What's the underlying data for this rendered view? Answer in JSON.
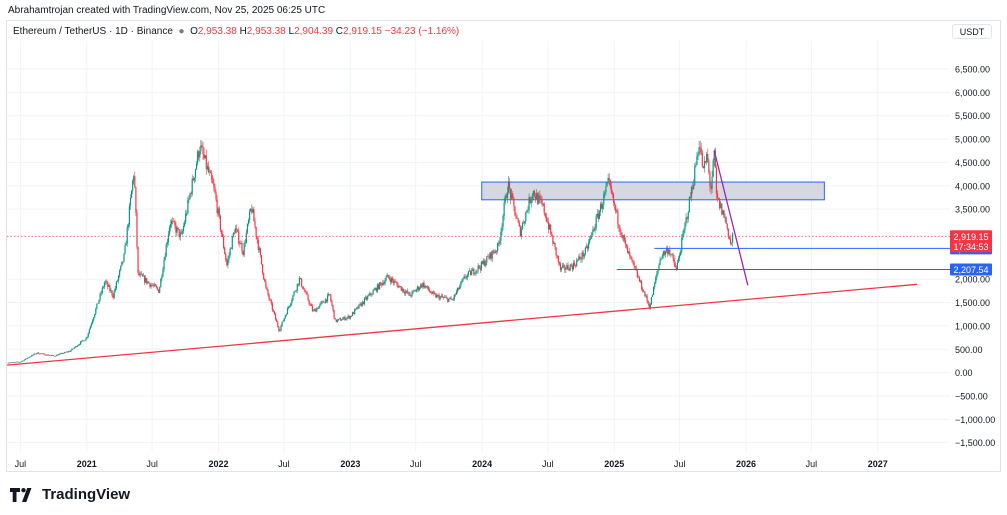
{
  "header": {
    "credit": "Abrahamtrojan created with TradingView.com, Nov 25, 2025 06:25 UTC",
    "symbol": "Ethereum / TetherUS · 1D · Binance",
    "open_label": "O",
    "open": "2,953.38",
    "high_label": "H",
    "high": "2,953.38",
    "low_label": "L",
    "low": "2,904.39",
    "close_label": "C",
    "close": "2,919.15",
    "change": "−34.23 (−1.16%)"
  },
  "axis_currency": "USDT",
  "brand": {
    "name": "TradingView",
    "icon": "tradingview-logo-icon"
  },
  "colors": {
    "up": "#089981",
    "down": "#f23645",
    "support_line": "#f23645",
    "resistance_line": "#9c27b0",
    "level_line": "#2962ff",
    "zone_fill": "#d1d4dc",
    "zone_border": "#2962ff",
    "grid": "#f0f3fa"
  },
  "chart_data": {
    "type": "candlestick",
    "x_axis": {
      "range": [
        "2020-05-25",
        "2027-07-20"
      ],
      "ticks": [
        {
          "date": "2020-07-01",
          "label": "Jul",
          "bold": false
        },
        {
          "date": "2021-01-01",
          "label": "2021",
          "bold": true
        },
        {
          "date": "2021-07-01",
          "label": "Jul",
          "bold": false
        },
        {
          "date": "2022-01-01",
          "label": "2022",
          "bold": true
        },
        {
          "date": "2022-07-01",
          "label": "Jul",
          "bold": false
        },
        {
          "date": "2023-01-01",
          "label": "2023",
          "bold": true
        },
        {
          "date": "2023-07-01",
          "label": "Jul",
          "bold": false
        },
        {
          "date": "2024-01-01",
          "label": "2024",
          "bold": true
        },
        {
          "date": "2024-07-01",
          "label": "Jul",
          "bold": false
        },
        {
          "date": "2025-01-01",
          "label": "2025",
          "bold": true
        },
        {
          "date": "2025-07-01",
          "label": "Jul",
          "bold": false
        },
        {
          "date": "2026-01-01",
          "label": "2026",
          "bold": true
        },
        {
          "date": "2026-07-01",
          "label": "Jul",
          "bold": false
        },
        {
          "date": "2027-01-01",
          "label": "2027",
          "bold": true
        }
      ]
    },
    "y_axis": {
      "range": [
        -1700,
        7100
      ],
      "ticks": [
        {
          "value": 6500,
          "label": "6,500.00"
        },
        {
          "value": 6000,
          "label": "6,000.00"
        },
        {
          "value": 5500,
          "label": "5,500.00"
        },
        {
          "value": 5000,
          "label": "5,000.00"
        },
        {
          "value": 4500,
          "label": "4,500.00"
        },
        {
          "value": 4000,
          "label": "4,000.00"
        },
        {
          "value": 3500,
          "label": "3,500.00"
        },
        {
          "value": 2000,
          "label": "2,000.00"
        },
        {
          "value": 1500,
          "label": "1,500.00"
        },
        {
          "value": 1000,
          "label": "1,000.00"
        },
        {
          "value": 500,
          "label": "500.00"
        },
        {
          "value": 0,
          "label": "0.00"
        },
        {
          "value": -500,
          "label": "−500.00"
        },
        {
          "value": -1000,
          "label": "−1,000.00"
        },
        {
          "value": -1500,
          "label": "−1,500.00"
        }
      ]
    },
    "price_path": [
      [
        "2020-05-25",
        210
      ],
      [
        "2020-07-01",
        230
      ],
      [
        "2020-08-15",
        420
      ],
      [
        "2020-10-01",
        355
      ],
      [
        "2020-11-15",
        460
      ],
      [
        "2020-12-31",
        740
      ],
      [
        "2021-02-20",
        1950
      ],
      [
        "2021-03-15",
        1650
      ],
      [
        "2021-04-15",
        2500
      ],
      [
        "2021-05-12",
        4350
      ],
      [
        "2021-05-23",
        2100
      ],
      [
        "2021-07-20",
        1750
      ],
      [
        "2021-08-20",
        3250
      ],
      [
        "2021-09-20",
        2900
      ],
      [
        "2021-11-10",
        4850
      ],
      [
        "2021-12-20",
        3900
      ],
      [
        "2022-01-24",
        2300
      ],
      [
        "2022-02-15",
        3100
      ],
      [
        "2022-03-10",
        2600
      ],
      [
        "2022-04-02",
        3550
      ],
      [
        "2022-05-12",
        1800
      ],
      [
        "2022-06-18",
        900
      ],
      [
        "2022-08-13",
        2000
      ],
      [
        "2022-09-20",
        1300
      ],
      [
        "2022-11-05",
        1650
      ],
      [
        "2022-11-20",
        1100
      ],
      [
        "2022-12-31",
        1200
      ],
      [
        "2023-02-10",
        1550
      ],
      [
        "2023-04-15",
        2050
      ],
      [
        "2023-06-15",
        1650
      ],
      [
        "2023-07-20",
        1900
      ],
      [
        "2023-08-20",
        1650
      ],
      [
        "2023-10-10",
        1550
      ],
      [
        "2023-11-15",
        2050
      ],
      [
        "2023-12-31",
        2300
      ],
      [
        "2024-02-15",
        2700
      ],
      [
        "2024-03-12",
        4050
      ],
      [
        "2024-04-15",
        3000
      ],
      [
        "2024-05-20",
        3900
      ],
      [
        "2024-06-20",
        3500
      ],
      [
        "2024-07-10",
        2950
      ],
      [
        "2024-08-05",
        2200
      ],
      [
        "2024-09-10",
        2300
      ],
      [
        "2024-10-15",
        2600
      ],
      [
        "2024-11-10",
        3200
      ],
      [
        "2024-12-16",
        4050
      ],
      [
        "2025-01-10",
        3300
      ],
      [
        "2025-02-03",
        2650
      ],
      [
        "2025-03-10",
        2000
      ],
      [
        "2025-04-09",
        1400
      ],
      [
        "2025-05-10",
        2500
      ],
      [
        "2025-06-01",
        2650
      ],
      [
        "2025-06-22",
        2200
      ],
      [
        "2025-07-15",
        3100
      ],
      [
        "2025-08-10",
        4200
      ],
      [
        "2025-08-24",
        4950
      ],
      [
        "2025-09-05",
        4300
      ],
      [
        "2025-09-15",
        4650
      ],
      [
        "2025-09-25",
        3900
      ],
      [
        "2025-10-06",
        4700
      ],
      [
        "2025-10-11",
        3750
      ],
      [
        "2025-11-04",
        3300
      ],
      [
        "2025-11-21",
        2700
      ],
      [
        "2025-11-25",
        2919
      ]
    ],
    "last_price": {
      "value": 2919.15,
      "label": "2,919.15",
      "countdown": "17:34:53"
    },
    "lines": [
      {
        "name": "support-trendline",
        "from": [
          "2020-05-25",
          160
        ],
        "to": [
          "2027-04-20",
          1890
        ],
        "color": "#f23645"
      },
      {
        "name": "descending-trendline",
        "from": [
          "2025-10-05",
          4750
        ],
        "to": [
          "2026-01-06",
          1870
        ],
        "color": "#9c27b0"
      }
    ],
    "levels": [
      {
        "value": 2659.25,
        "label": "2,659.25",
        "from": "2025-04-22",
        "color": "#2962ff"
      },
      {
        "value": 2207.54,
        "label": "2,207.54",
        "from": "2025-01-08",
        "color": "#2962ff"
      }
    ],
    "zone": {
      "from": "2023-12-31",
      "to": "2026-08-06",
      "y_from": 3700,
      "y_to": 4080
    },
    "grid": true,
    "legend": "top-left"
  }
}
